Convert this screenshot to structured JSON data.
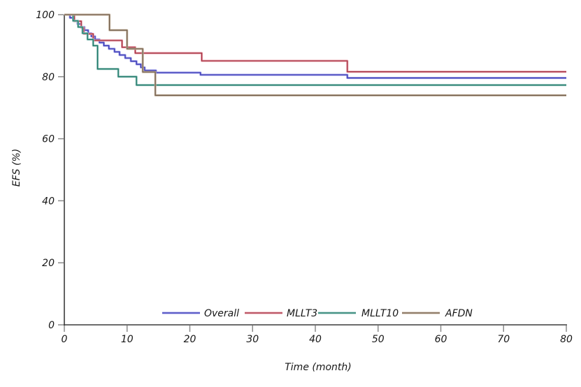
{
  "chart_data": {
    "type": "line",
    "subtype": "kaplan-meier-step",
    "title": "",
    "xlabel": "Time (month)",
    "ylabel": "EFS (%)",
    "xlim": [
      0,
      80
    ],
    "ylim": [
      0,
      100
    ],
    "xticks": [
      0,
      10,
      20,
      30,
      40,
      50,
      60,
      70,
      80
    ],
    "yticks": [
      0,
      20,
      40,
      60,
      80,
      100
    ],
    "grid": false,
    "legend": {
      "position": "bottom-inside",
      "entries": [
        "Overall",
        "MLLT3",
        "MLLT10",
        "AFDN"
      ]
    },
    "colors": {
      "axis": "#3b3b3b",
      "tick": "#8a8a8a",
      "text": "#171717",
      "background": "#ffffff"
    },
    "series": [
      {
        "name": "Overall",
        "color_core": "#3c3cb4",
        "color_halo": "#9a9ae8",
        "steps": [
          [
            0,
            100
          ],
          [
            0.9,
            99
          ],
          [
            1.6,
            98
          ],
          [
            2.1,
            97
          ],
          [
            2.7,
            96
          ],
          [
            3.2,
            95
          ],
          [
            3.8,
            94
          ],
          [
            4.3,
            93
          ],
          [
            4.9,
            92
          ],
          [
            5.6,
            91
          ],
          [
            6.3,
            90
          ],
          [
            7.1,
            89
          ],
          [
            8.0,
            88
          ],
          [
            8.8,
            87
          ],
          [
            9.7,
            86
          ],
          [
            10.6,
            85
          ],
          [
            11.5,
            84
          ],
          [
            12.2,
            83
          ],
          [
            12.8,
            82
          ],
          [
            14.6,
            81.3
          ],
          [
            21.7,
            80.6
          ],
          [
            45.1,
            79.6
          ],
          [
            80,
            79.6
          ]
        ]
      },
      {
        "name": "MLLT3",
        "color_core": "#a43445",
        "color_halo": "#e79aa5",
        "steps": [
          [
            0,
            100
          ],
          [
            1.6,
            97.9
          ],
          [
            2.7,
            95.8
          ],
          [
            3.1,
            93.8
          ],
          [
            4.6,
            91.7
          ],
          [
            9.2,
            89.5
          ],
          [
            11.3,
            87.6
          ],
          [
            21.9,
            85.1
          ],
          [
            45.1,
            81.6
          ],
          [
            80,
            81.6
          ]
        ]
      },
      {
        "name": "MLLT10",
        "color_core": "#1f7a68",
        "color_halo": "#8fc0ba",
        "steps": [
          [
            0,
            100
          ],
          [
            1.4,
            98
          ],
          [
            2.2,
            96
          ],
          [
            2.9,
            94
          ],
          [
            3.7,
            92
          ],
          [
            4.6,
            90
          ],
          [
            5.3,
            82.5
          ],
          [
            8.6,
            80
          ],
          [
            11.5,
            77.3
          ],
          [
            80,
            77.3
          ]
        ]
      },
      {
        "name": "AFDN",
        "color_core": "#73614f",
        "color_halo": "#c4b29e",
        "steps": [
          [
            0,
            100
          ],
          [
            7.2,
            95
          ],
          [
            10.0,
            89
          ],
          [
            12.5,
            81.5
          ],
          [
            14.5,
            74
          ],
          [
            80,
            74
          ]
        ]
      }
    ]
  }
}
